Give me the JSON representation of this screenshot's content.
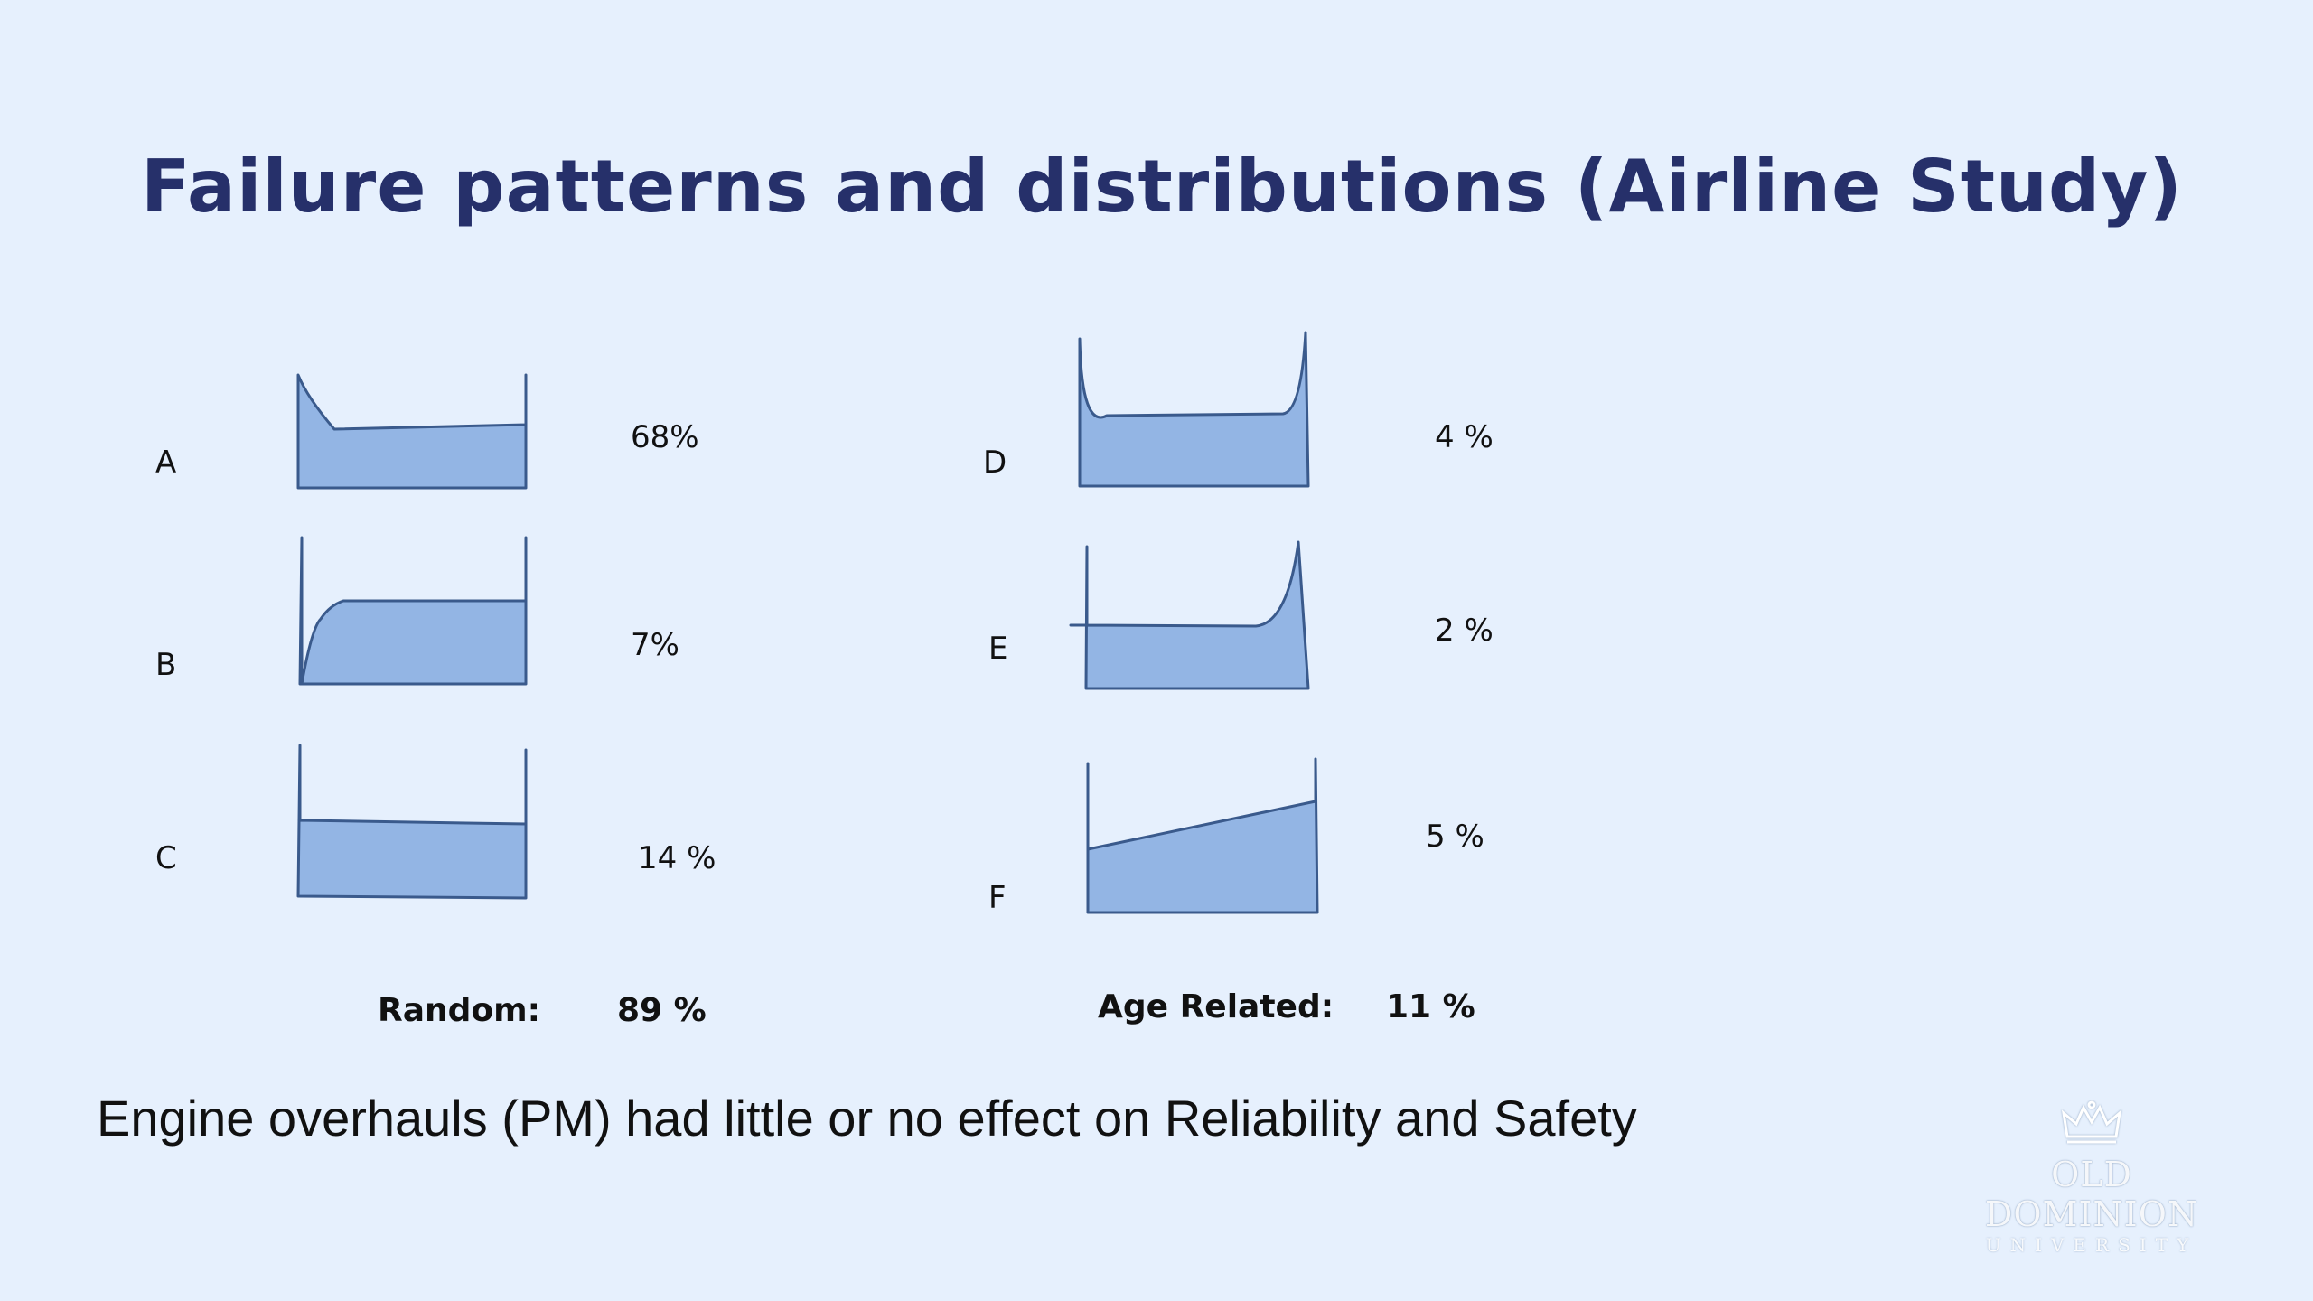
{
  "slide": {
    "title": "Failure patterns and distributions (Airline Study)",
    "patterns": [
      {
        "id": "A",
        "label": "A",
        "percent": "68%"
      },
      {
        "id": "B",
        "label": "B",
        "percent": "7%"
      },
      {
        "id": "C",
        "label": "C",
        "percent": "14 %"
      },
      {
        "id": "D",
        "label": "D",
        "percent": "4 %"
      },
      {
        "id": "E",
        "label": "E",
        "percent": "2 %"
      },
      {
        "id": "F",
        "label": "F",
        "percent": "5 %"
      }
    ],
    "summary": {
      "random_label": "Random:",
      "random_value": "89 %",
      "age_label": "Age Related:",
      "age_value": "11 %"
    },
    "conclusion": "Engine overhauls (PM) had little or no effect on Reliability and Safety",
    "logo": {
      "name": "OLD DOMINION",
      "sub": "UNIVERSITY"
    },
    "colors": {
      "title": "#26306a",
      "fill": "#93b5e4",
      "stroke": "#3a5a8c",
      "background": "#e6f0fd"
    }
  }
}
